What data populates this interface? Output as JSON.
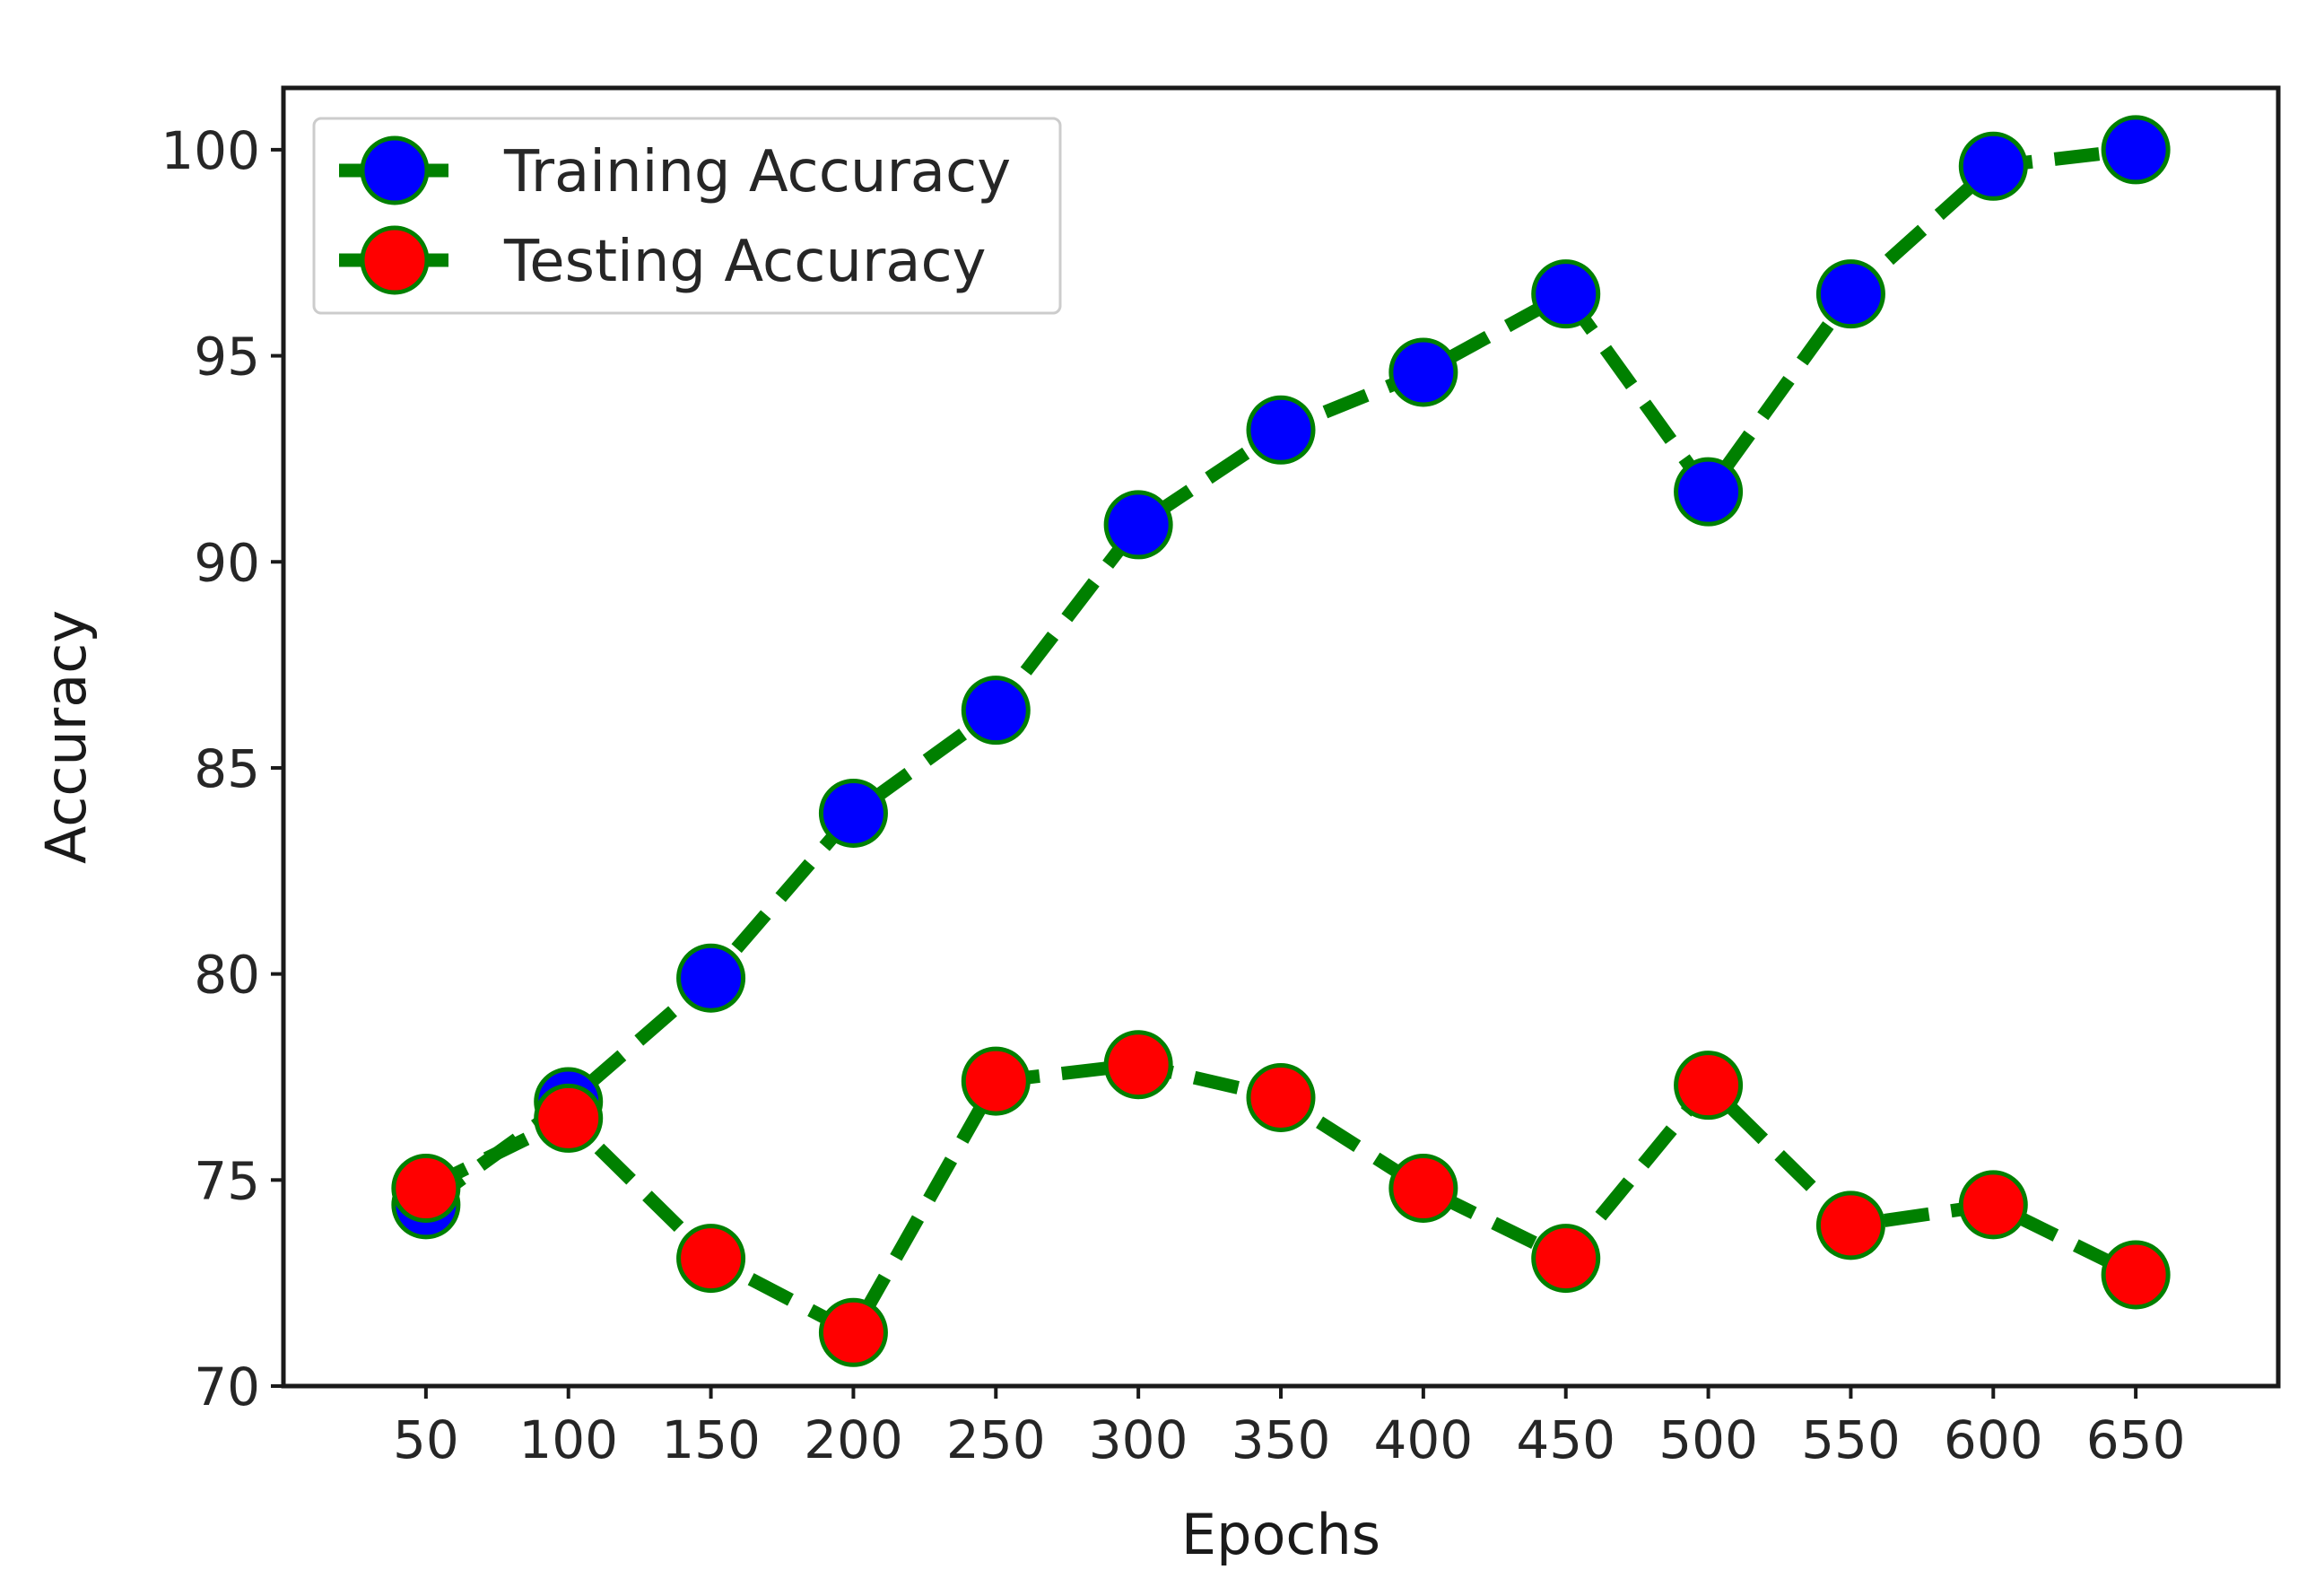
{
  "chart_data": {
    "type": "line",
    "title": "",
    "xlabel": "Epochs",
    "ylabel": "Accuracy",
    "x": [
      50,
      100,
      150,
      200,
      250,
      300,
      350,
      400,
      450,
      500,
      550,
      600,
      650
    ],
    "xlim": [
      0,
      700
    ],
    "ylim": [
      70,
      101.5
    ],
    "yticks": [
      70,
      75,
      80,
      85,
      90,
      95,
      100
    ],
    "grid": false,
    "legend_position": "top-left",
    "line_color": "#008000",
    "line_style": "dashed",
    "series": [
      {
        "name": "Training Accuracy",
        "marker_color": "#0000ff",
        "values": [
          74.4,
          76.9,
          79.9,
          83.9,
          86.4,
          90.9,
          93.2,
          94.6,
          96.5,
          91.7,
          96.5,
          99.6,
          100.0
        ]
      },
      {
        "name": "Testing Accuracy",
        "marker_color": "#ff0000",
        "values": [
          74.8,
          76.5,
          73.1,
          71.3,
          77.4,
          77.8,
          77.0,
          74.8,
          73.1,
          77.3,
          73.9,
          74.4,
          72.7
        ]
      }
    ]
  }
}
